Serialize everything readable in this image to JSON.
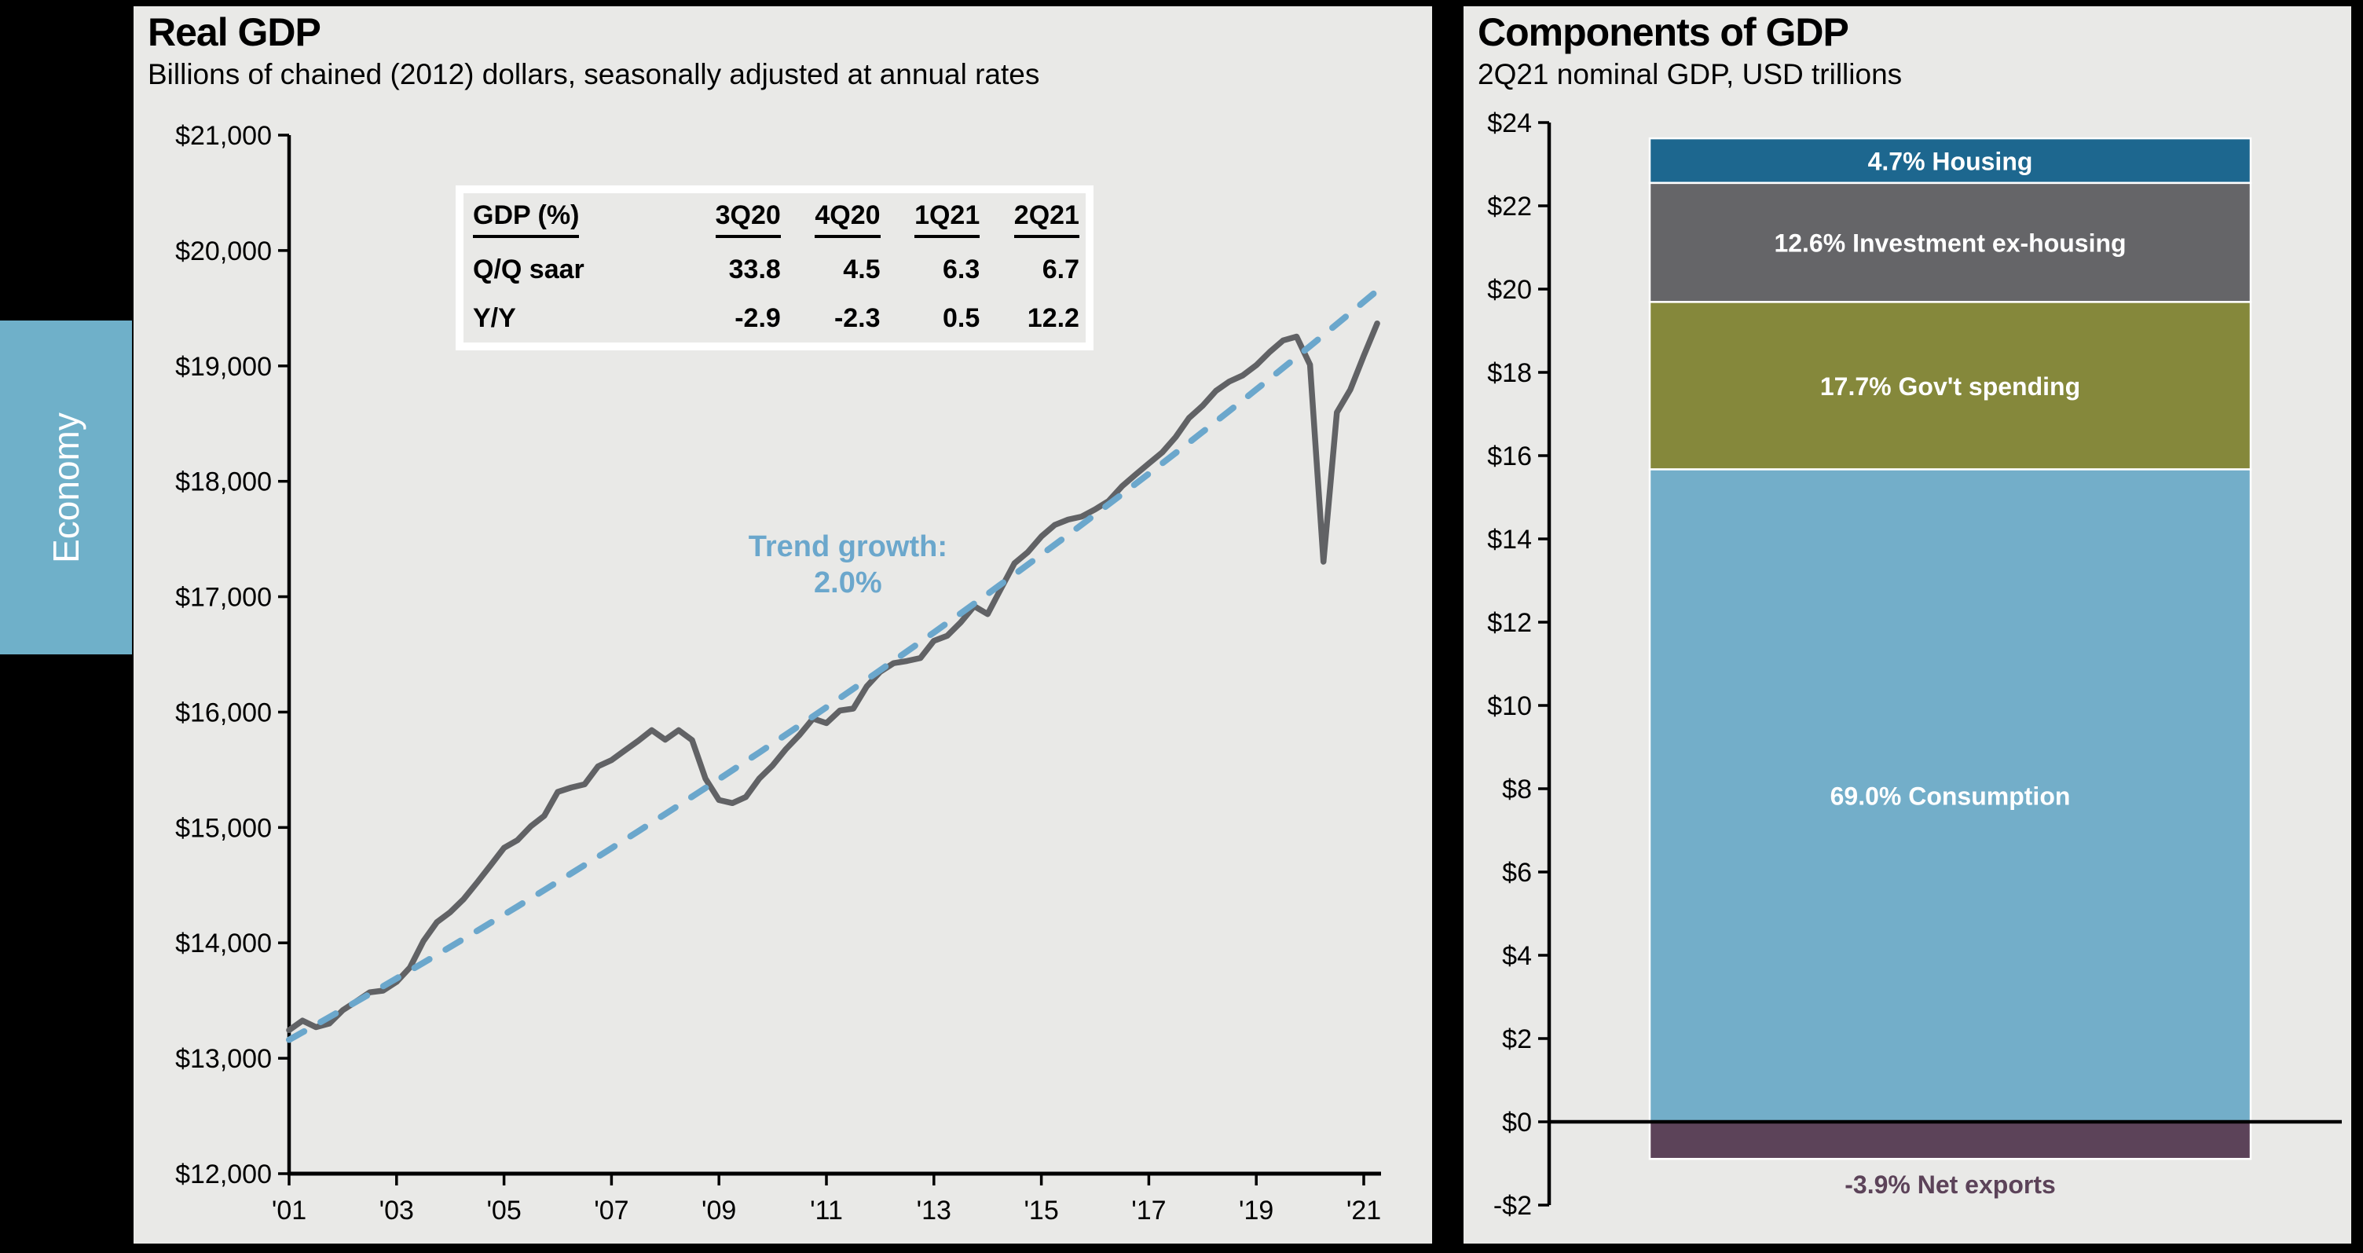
{
  "slide": {
    "background": "#000000",
    "panel_background": "#E9E9E7"
  },
  "sidebar_tab": {
    "label": "Economy",
    "background": "#6FB0C9",
    "text_color": "#FFFFFF"
  },
  "left_panel": {
    "title": "Real GDP",
    "subtitle": "Billions of chained (2012) dollars, seasonally adjusted at annual rates",
    "table": {
      "header": [
        "GDP (%)",
        "3Q20",
        "4Q20",
        "1Q21",
        "2Q21"
      ],
      "rows": [
        {
          "label": "Q/Q saar",
          "values": [
            "33.8",
            "4.5",
            "6.3",
            "6.7"
          ]
        },
        {
          "label": "Y/Y",
          "values": [
            "-2.9",
            "-2.3",
            "0.5",
            "12.2"
          ]
        }
      ]
    }
  },
  "right_panel": {
    "title": "Components of GDP",
    "subtitle": "2Q21 nominal GDP, USD trillions"
  },
  "chart_data": [
    {
      "type": "line",
      "title": "Real GDP",
      "ylabel": "Billions of chained (2012) dollars, seasonally adjusted at annual rates",
      "xlabel": "",
      "x_range": [
        2001,
        2021.5
      ],
      "ylim": [
        12000,
        21000
      ],
      "grid": false,
      "x_axis": {
        "ticks": [
          {
            "year": 2001,
            "label": "'01"
          },
          {
            "year": 2003,
            "label": "'03"
          },
          {
            "year": 2005,
            "label": "'05"
          },
          {
            "year": 2007,
            "label": "'07"
          },
          {
            "year": 2009,
            "label": "'09"
          },
          {
            "year": 2011,
            "label": "'11"
          },
          {
            "year": 2013,
            "label": "'13"
          },
          {
            "year": 2015,
            "label": "'15"
          },
          {
            "year": 2017,
            "label": "'17"
          },
          {
            "year": 2019,
            "label": "'19"
          },
          {
            "year": 2021,
            "label": "'21"
          }
        ]
      },
      "y_axis": {
        "ticks": [
          {
            "value": 21000,
            "label": "$21,000"
          },
          {
            "value": 20000,
            "label": "$20,000"
          },
          {
            "value": 19000,
            "label": "$19,000"
          },
          {
            "value": 18000,
            "label": "$18,000"
          },
          {
            "value": 17000,
            "label": "$17,000"
          },
          {
            "value": 16000,
            "label": "$16,000"
          },
          {
            "value": 15000,
            "label": "$15,000"
          },
          {
            "value": 14000,
            "label": "$14,000"
          },
          {
            "value": 13000,
            "label": "$13,000"
          },
          {
            "value": 12000,
            "label": "$12,000"
          }
        ]
      },
      "series": [
        {
          "name": "Real GDP",
          "style": "solid",
          "color": "#616265",
          "start_year": 2001,
          "frequency": "quarterly",
          "values": [
            13244,
            13326,
            13270,
            13301,
            13417,
            13492,
            13571,
            13586,
            13662,
            13787,
            14016,
            14179,
            14266,
            14380,
            14524,
            14672,
            14823,
            14890,
            15011,
            15102,
            15308,
            15346,
            15374,
            15530,
            15584,
            15668,
            15752,
            15843,
            15761,
            15843,
            15757,
            15422,
            15238,
            15211,
            15264,
            15424,
            15538,
            15681,
            15802,
            15944,
            15904,
            16013,
            16030,
            16222,
            16349,
            16424,
            16443,
            16469,
            16618,
            16662,
            16778,
            16918,
            16849,
            17071,
            17290,
            17387,
            17522,
            17622,
            17668,
            17694,
            17757,
            17828,
            17956,
            18057,
            18154,
            18250,
            18384,
            18550,
            18654,
            18784,
            18865,
            18918,
            19006,
            19121,
            19221,
            19254,
            19011,
            17303,
            18597,
            18794,
            19088,
            19368
          ]
        },
        {
          "name": "Trend growth 2.0%",
          "style": "dashed",
          "color": "#6BA7CC",
          "trend": {
            "start_year": 2001,
            "start_value": 13160,
            "annual_growth_pct": 2.0,
            "end_year": 2021.3
          }
        }
      ],
      "annotation": {
        "lines": [
          "Trend growth:",
          "2.0%"
        ],
        "x_year": 2011.4,
        "y_value": 17350,
        "color": "#6BA7CC"
      }
    },
    {
      "type": "bar",
      "stacked": true,
      "title": "Components of GDP",
      "subtitle": "2Q21 nominal GDP, USD trillions",
      "ylim": [
        -2,
        24
      ],
      "grid": false,
      "total_trillions": 22.72,
      "y_ticks": [
        {
          "value": 24,
          "label": "$24"
        },
        {
          "value": 22,
          "label": "$22"
        },
        {
          "value": 20,
          "label": "$20"
        },
        {
          "value": 18,
          "label": "$18"
        },
        {
          "value": 16,
          "label": "$16"
        },
        {
          "value": 14,
          "label": "$14"
        },
        {
          "value": 12,
          "label": "$12"
        },
        {
          "value": 10,
          "label": "$10"
        },
        {
          "value": 8,
          "label": "$8"
        },
        {
          "value": 6,
          "label": "$6"
        },
        {
          "value": 4,
          "label": "$4"
        },
        {
          "value": 2,
          "label": "$2"
        },
        {
          "value": 0,
          "label": "$0"
        },
        {
          "value": -2,
          "label": "-$2"
        }
      ],
      "segments": [
        {
          "name": "Housing",
          "share_pct": 4.7,
          "value_trillions": 1.07,
          "color": "#1D678F",
          "label": "4.7% Housing",
          "label_color": "#FFFFFF",
          "label_position": "inside"
        },
        {
          "name": "Investment ex-housing",
          "share_pct": 12.6,
          "value_trillions": 2.86,
          "color": "#656568",
          "label": "12.6% Investment ex-housing",
          "label_color": "#FFFFFF",
          "label_position": "inside"
        },
        {
          "name": "Gov't spending",
          "share_pct": 17.7,
          "value_trillions": 4.02,
          "color": "#85883B",
          "label": "17.7% Gov't spending",
          "label_color": "#FFFFFF",
          "label_position": "inside"
        },
        {
          "name": "Consumption",
          "share_pct": 69.0,
          "value_trillions": 15.67,
          "color": "#73AEC9",
          "label": "69.0% Consumption",
          "label_color": "#FFFFFF",
          "label_position": "inside"
        },
        {
          "name": "Net exports",
          "share_pct": -3.9,
          "value_trillions": -0.89,
          "color": "#5C4359",
          "label": "-3.9% Net exports",
          "label_color": "#5C4359",
          "label_position": "below"
        }
      ]
    }
  ]
}
